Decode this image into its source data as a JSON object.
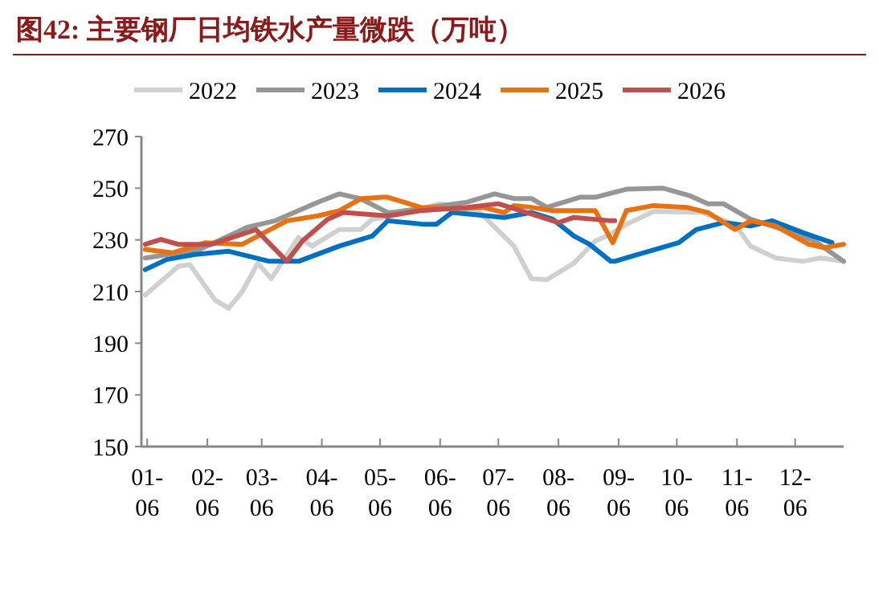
{
  "chart_data": {
    "type": "line",
    "title": "图42:  主要钢厂日均铁水产量微跌（万吨）",
    "xlim": [
      "--01-03",
      "--12-31"
    ],
    "xticks": [
      {
        "value": "--01-06",
        "label": "01-06"
      },
      {
        "value": "--02-06",
        "label": "02-06"
      },
      {
        "value": "--03-06",
        "label": "03-06"
      },
      {
        "value": "--04-06",
        "label": "04-06"
      },
      {
        "value": "--05-06",
        "label": "05-06"
      },
      {
        "value": "--06-06",
        "label": "06-06"
      },
      {
        "value": "--07-06",
        "label": "07-06"
      },
      {
        "value": "--08-06",
        "label": "08-06"
      },
      {
        "value": "--09-06",
        "label": "09-06"
      },
      {
        "value": "--10-06",
        "label": "10-06"
      },
      {
        "value": "--11-06",
        "label": "11-06"
      },
      {
        "value": "--12-06",
        "label": "12-06"
      }
    ],
    "ylim": [
      150,
      270
    ],
    "yticks": [
      150,
      170,
      190,
      210,
      230,
      250,
      270
    ],
    "grid": false,
    "legend": "top",
    "marker": "none",
    "line_style": "solid",
    "series": [
      {
        "name": "2022",
        "color": "#d0d0d0",
        "x": [
          "--01-05",
          "--01-22",
          "--01-28",
          "--02-10",
          "--02-17",
          "--02-24",
          "--03-04",
          "--03-11",
          "--03-25",
          "--04-01",
          "--04-15",
          "--04-26",
          "--05-02",
          "--05-10",
          "--06-06",
          "--06-26",
          "--07-14",
          "--07-23",
          "--07-31",
          "--08-14",
          "--08-25",
          "--08-31",
          "--09-10",
          "--09-24",
          "--10-19",
          "--11-05",
          "--11-13",
          "--11-26",
          "--12-10",
          "--12-19",
          "--12-31"
        ],
        "values": [
          208.7,
          219.8,
          220.4,
          206.7,
          203.5,
          210,
          221,
          215,
          231,
          227.6,
          234,
          234,
          238,
          239,
          244,
          241,
          227.6,
          215,
          214.6,
          221,
          229.6,
          231.5,
          236,
          241,
          240.6,
          236,
          227.6,
          223,
          221.7,
          223,
          221.7
        ]
      },
      {
        "name": "2023",
        "color": "#969696",
        "x": [
          "--01-05",
          "--02-02",
          "--02-27",
          "--03-13",
          "--04-04",
          "--04-15",
          "--04-26",
          "--05-10",
          "--05-12",
          "--06-20",
          "--07-04",
          "--07-14",
          "--07-23",
          "--07-31",
          "--08-17",
          "--08-25",
          "--09-10",
          "--09-29",
          "--10-13",
          "--10-22",
          "--10-30",
          "--11-13",
          "--11-30",
          "--12-16",
          "--12-31"
        ],
        "values": [
          223,
          226.3,
          235,
          237.4,
          244.6,
          247.8,
          245.9,
          240.6,
          240.6,
          244.6,
          247.8,
          246,
          246,
          242.6,
          246.5,
          246.5,
          249.6,
          250,
          247,
          244,
          244,
          238,
          234,
          229.6,
          221.7
        ]
      },
      {
        "name": "2024",
        "color": "#0070c0",
        "x": [
          "--01-05",
          "--01-16",
          "--01-30",
          "--02-17",
          "--03-10",
          "--03-25",
          "--04-15",
          "--05-02",
          "--05-10",
          "--05-29",
          "--06-04",
          "--06-12",
          "--07-09",
          "--07-23",
          "--08-03",
          "--08-14",
          "--08-22",
          "--09-02",
          "--09-04",
          "--09-13",
          "--10-07",
          "--10-16",
          "--10-30",
          "--11-13",
          "--11-24",
          "--12-10",
          "--12-25"
        ],
        "values": [
          218.5,
          222.4,
          224.3,
          225.6,
          221.7,
          221.7,
          227.6,
          231.5,
          237.4,
          236,
          236,
          240.6,
          238.7,
          240.6,
          238,
          231.5,
          228.3,
          221.7,
          221.7,
          223.7,
          228.9,
          234,
          236.7,
          235.4,
          237.4,
          232.8,
          228.9
        ]
      },
      {
        "name": "2025",
        "color": "#e87212",
        "x": [
          "--01-05",
          "--01-19",
          "--02-05",
          "--02-24",
          "--03-04",
          "--03-19",
          "--04-04",
          "--04-15",
          "--04-26",
          "--05-07",
          "--05-10",
          "--05-27",
          "--06-12",
          "--06-28",
          "--07-09",
          "--07-14",
          "--07-23",
          "--08-03",
          "--08-25",
          "--09-03",
          "--09-10",
          "--09-24",
          "--10-11",
          "--10-22",
          "--11-05",
          "--11-13",
          "--11-26",
          "--12-13",
          "--12-21",
          "--12-31"
        ],
        "values": [
          226.3,
          225,
          228.9,
          228.3,
          231.5,
          237.4,
          239.3,
          241.3,
          245.9,
          246.5,
          246.5,
          242.6,
          242,
          242.6,
          240.6,
          243.3,
          242.6,
          241.3,
          241.3,
          228.9,
          241.3,
          243.3,
          242.6,
          240.6,
          234,
          237.4,
          235.4,
          228.3,
          227,
          228.3
        ]
      },
      {
        "name": "2026",
        "color": "#c0504d",
        "x": [
          "--01-05",
          "--01-13",
          "--01-22",
          "--02-08",
          "--02-21",
          "--03-03",
          "--03-19",
          "--03-27",
          "--04-09",
          "--04-17",
          "--05-10",
          "--05-27",
          "--06-20",
          "--07-06",
          "--07-23",
          "--08-06",
          "--08-14",
          "--09-02",
          "--09-04"
        ],
        "values": [
          228.3,
          230.2,
          228.3,
          228.3,
          231.5,
          234,
          221.7,
          229.6,
          238,
          240.6,
          239.3,
          241.3,
          242.6,
          244,
          240,
          236.7,
          238.7,
          237.4,
          237.4
        ]
      }
    ]
  }
}
